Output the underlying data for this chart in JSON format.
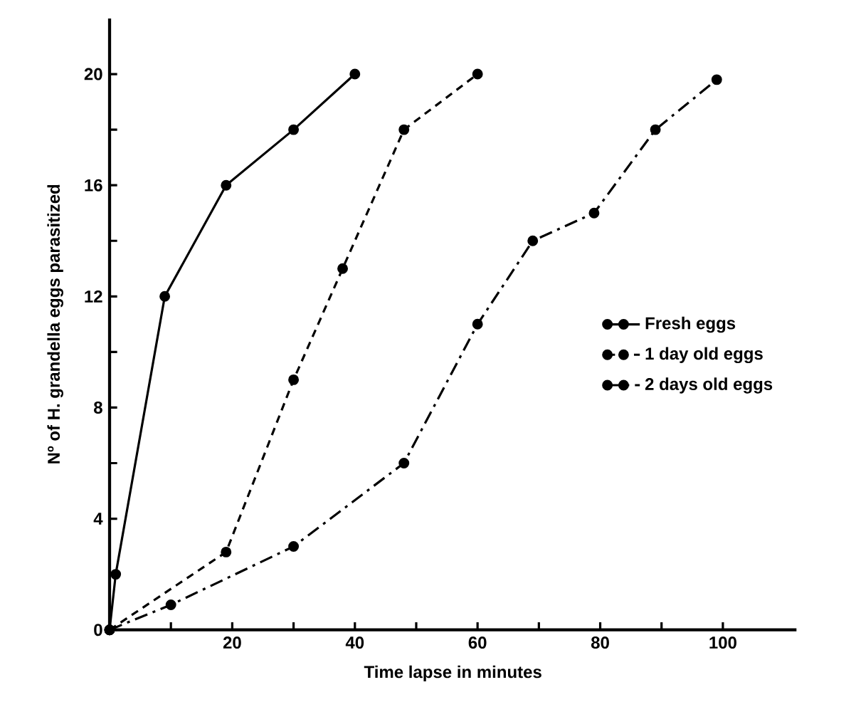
{
  "chart_data": {
    "type": "line",
    "xlabel": "Time lapse in minutes",
    "ylabel": "Nº of H. grandella eggs parasitized",
    "xlim": [
      0,
      112
    ],
    "ylim": [
      0,
      22
    ],
    "xticks": [
      {
        "value": 10,
        "label": null
      },
      20,
      {
        "value": 30,
        "label": null
      },
      40,
      {
        "value": 50,
        "label": null
      },
      60,
      {
        "value": 70,
        "label": null
      },
      80,
      {
        "value": 90,
        "label": null
      },
      100
    ],
    "yticks": [
      0,
      {
        "value": 2,
        "label": null
      },
      4,
      {
        "value": 6,
        "label": null
      },
      8,
      {
        "value": 10,
        "label": null
      },
      12,
      {
        "value": 14,
        "label": null
      },
      16,
      {
        "value": 18,
        "label": null
      },
      20
    ],
    "marker": "circle",
    "legend": "right",
    "grid": false,
    "series": [
      {
        "name": "Fresh eggs",
        "color": "#000000",
        "line_style": "solid",
        "x": [
          0,
          1,
          9,
          19,
          30,
          40
        ],
        "values": [
          0,
          2,
          12,
          16,
          18,
          20
        ]
      },
      {
        "name": "1 day old eggs",
        "color": "#000000",
        "line_style": "dashed",
        "x": [
          0,
          19,
          30,
          38,
          48,
          60
        ],
        "values": [
          0,
          2.8,
          9,
          13,
          18,
          20
        ]
      },
      {
        "name": "2 days old eggs",
        "color": "#000000",
        "line_style": "dashdot",
        "x": [
          0,
          10,
          30,
          48,
          60,
          69,
          79,
          89,
          99
        ],
        "values": [
          0,
          0.9,
          3,
          6,
          11,
          14,
          15,
          18,
          19.8
        ]
      }
    ]
  }
}
